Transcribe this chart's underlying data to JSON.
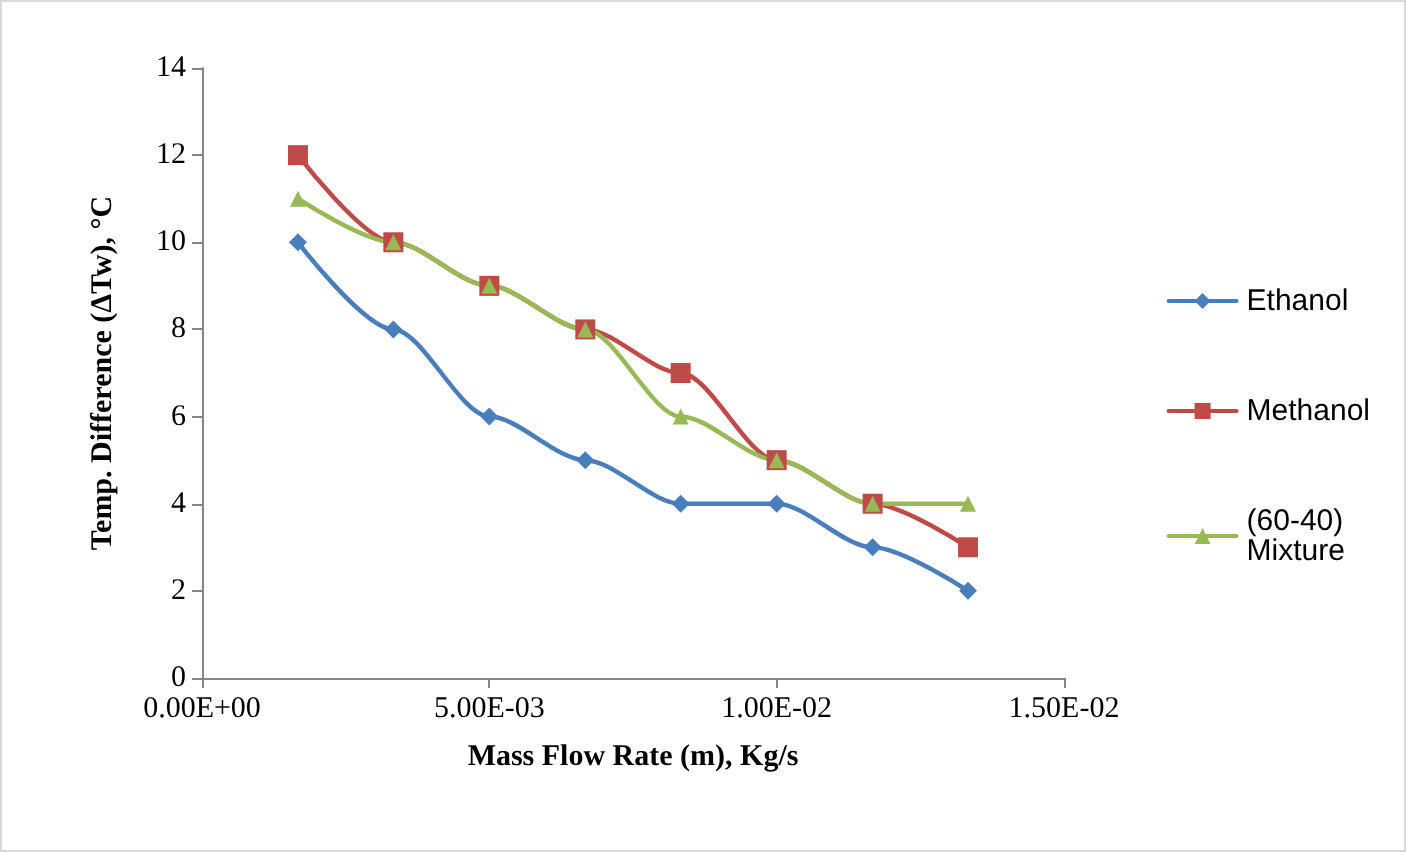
{
  "chart_data": {
    "type": "line",
    "xlabel": "Mass Flow Rate (m), Kg/s",
    "ylabel": "Temp. Difference (ΔTw), °C",
    "x": [
      0.00167,
      0.00333,
      0.005,
      0.00667,
      0.00833,
      0.01,
      0.01167,
      0.01333
    ],
    "series": [
      {
        "name": "Ethanol",
        "color": "#4a7ebb",
        "marker": "diamond",
        "values": [
          10,
          8,
          6,
          5,
          4,
          4,
          3,
          2
        ]
      },
      {
        "name": "Methanol",
        "color": "#be4b48",
        "marker": "square",
        "values": [
          12,
          10,
          9,
          8,
          7,
          5,
          4,
          3
        ]
      },
      {
        "name": "(60-40) Mixture",
        "color": "#98b954",
        "marker": "triangle",
        "values": [
          11,
          10,
          9,
          8,
          6,
          5,
          4,
          4
        ]
      }
    ],
    "xlim": [
      0,
      0.015
    ],
    "xticks": [
      {
        "value": 0,
        "label": "0.00E+00"
      },
      {
        "value": 0.005,
        "label": "5.00E-03"
      },
      {
        "value": 0.01,
        "label": "1.00E-02"
      },
      {
        "value": 0.015,
        "label": "1.50E-02"
      }
    ],
    "ylim": [
      0,
      14
    ],
    "yticks": [
      0,
      2,
      4,
      6,
      8,
      10,
      12,
      14
    ],
    "grid": false,
    "legend": "right",
    "line_style": "solid"
  }
}
